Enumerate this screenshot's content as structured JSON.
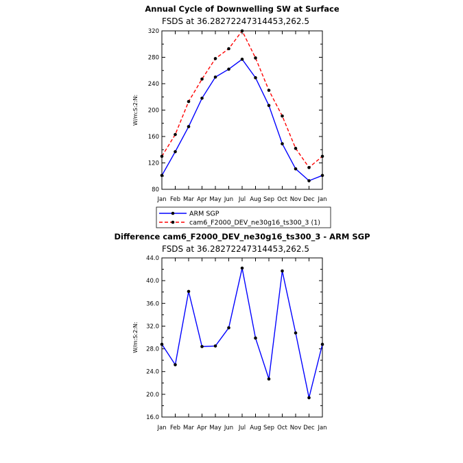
{
  "chart_data": [
    {
      "type": "line",
      "title": "Annual Cycle of Downwelling SW at Surface",
      "subtitle": "FSDS at 36.28272247314453,262.5",
      "ylabel": "W/m:S:2:N:",
      "xlabel": "",
      "categories": [
        "Jan",
        "Feb",
        "Mar",
        "Apr",
        "May",
        "Jun",
        "Jul",
        "Aug",
        "Sep",
        "Oct",
        "Nov",
        "Dec",
        "Jan"
      ],
      "ylim": [
        80,
        320
      ],
      "yticks": [
        80,
        120,
        160,
        200,
        240,
        280,
        320
      ],
      "ytick_labels": [
        "80",
        "120",
        "160",
        "200",
        "240",
        "280",
        "320"
      ],
      "series": [
        {
          "name": "ARM SGP",
          "color": "#0000ff",
          "dash": "solid",
          "values": [
            101,
            137,
            175,
            218,
            250,
            262,
            277,
            249,
            207,
            149,
            111,
            93,
            101
          ]
        },
        {
          "name": "cam6_F2000_DEV_ne30g16_ts300_3 (1)",
          "color": "#ff0000",
          "dash": "dashed",
          "values": [
            130,
            163,
            213,
            247,
            278,
            293,
            320,
            279,
            230,
            191,
            142,
            113,
            130
          ]
        }
      ],
      "legend": "below"
    },
    {
      "type": "line",
      "title": "Difference cam6_F2000_DEV_ne30g16_ts300_3 - ARM SGP",
      "subtitle": "FSDS at 36.28272247314453,262.5",
      "ylabel": "W/m:S:2:N:",
      "xlabel": "",
      "categories": [
        "Jan",
        "Feb",
        "Mar",
        "Apr",
        "May",
        "Jun",
        "Jul",
        "Aug",
        "Sep",
        "Oct",
        "Nov",
        "Dec",
        "Jan"
      ],
      "ylim": [
        16,
        44
      ],
      "yticks": [
        16,
        20,
        24,
        28,
        32,
        36,
        40,
        44
      ],
      "ytick_labels": [
        "16.0",
        "20.0",
        "24.0",
        "28.0",
        "32.0",
        "36.0",
        "40.0",
        "44.0"
      ],
      "series": [
        {
          "color": "#0000ff",
          "dash": "solid",
          "values": [
            28.8,
            25.2,
            38.1,
            28.4,
            28.5,
            31.7,
            42.2,
            29.9,
            22.7,
            41.7,
            30.8,
            19.4,
            28.8
          ]
        }
      ]
    }
  ]
}
